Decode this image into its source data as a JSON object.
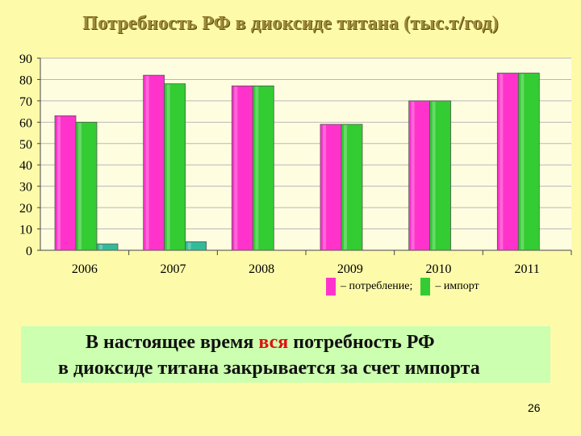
{
  "title": "Потребность РФ в диоксиде титана (тыс.т/год)",
  "chart_data": {
    "type": "bar",
    "categories": [
      "2006",
      "2007",
      "2008",
      "2009",
      "2010",
      "2011"
    ],
    "series": [
      {
        "name": "потребление",
        "color": "#ff33cc",
        "values": [
          63,
          82,
          77,
          59,
          70,
          83
        ]
      },
      {
        "name": "импорт",
        "color": "#33cc33",
        "values": [
          60,
          78,
          77,
          59,
          70,
          83
        ]
      },
      {
        "color": "#33bb99",
        "values": [
          3,
          4,
          0,
          0,
          0,
          0
        ]
      }
    ],
    "ylim": [
      0,
      90
    ],
    "yticks": [
      0,
      10,
      20,
      30,
      40,
      50,
      60,
      70,
      80,
      90
    ],
    "grid": true,
    "legend_position": "bottom-right"
  },
  "legend": {
    "consumption_label": "– потребление;",
    "import_label": "– импорт"
  },
  "note": {
    "line1_before": "В настоящее время ",
    "line1_highlight": "вся",
    "line1_after": " потребность РФ",
    "line2": "в диоксиде титана закрывается за счет импорта"
  },
  "page_number": "26"
}
